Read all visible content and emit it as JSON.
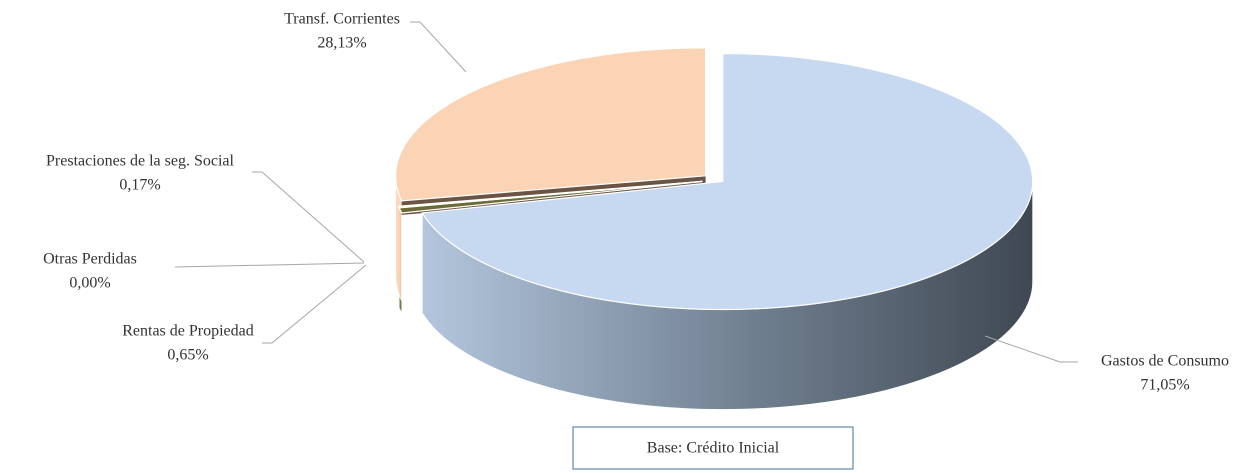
{
  "chart_data": {
    "type": "pie",
    "categories": [
      "Gastos de Consumo",
      "Rentas de Propiedad",
      "Otras Perdidas",
      "Prestaciones de la seg. Social",
      "Transf. Corrientes"
    ],
    "values": [
      71.05,
      0.65,
      0.0,
      0.17,
      28.13
    ],
    "value_labels": [
      "71,05%",
      "0,65%",
      "0,00%",
      "0,17%",
      "28,13%"
    ],
    "colors": [
      "#c6d9f0",
      "#6b6b35",
      "#8064a2",
      "#ffff99",
      "#fad4b4"
    ],
    "annotation": "Base: Crédito Inicial"
  }
}
